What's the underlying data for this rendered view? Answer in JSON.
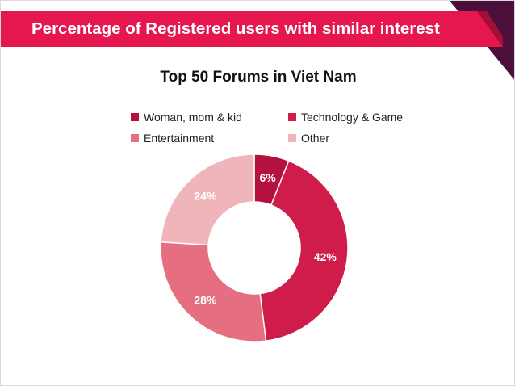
{
  "header": {
    "banner_title": "Percentage of Registered users with similar interest"
  },
  "colors": {
    "banner": "#e5174e",
    "banner_dark": "#a40f37",
    "corner": "#4a0f3a"
  },
  "chart_data": {
    "type": "pie",
    "variant": "donut",
    "title": "Top 50 Forums in Viet Nam",
    "legend_position": "top",
    "categories": [
      "Woman, mom & kid",
      "Technology & Game",
      "Entertainment",
      "Other"
    ],
    "values": [
      6,
      42,
      28,
      24
    ],
    "labels": [
      "6%",
      "42%",
      "28%",
      "24%"
    ],
    "colors": [
      "#b5113f",
      "#d01c4a",
      "#e56f80",
      "#f0b4bb"
    ]
  }
}
